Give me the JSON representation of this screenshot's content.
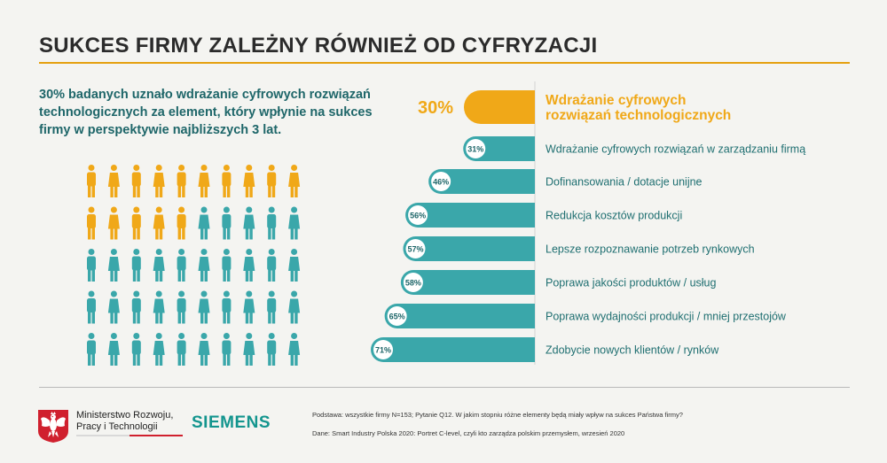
{
  "title": "SUKCES FIRMY ZALEŻNY RÓWNIEŻ OD CYFRYZACJI",
  "intro": "30% badanych uznało wdrażanie cyfrowych rozwiązań technologicznych za element, który wpłynie na sukces firmy w perspektywie najbliższych 3 lat.",
  "colors": {
    "highlight": "#f0a818",
    "base": "#3aa7aa",
    "title_rule": "#e5a010",
    "text_teal": "#1e6669"
  },
  "pictogram": {
    "total": 50,
    "highlighted": 15
  },
  "chart_data": {
    "type": "bar",
    "orientation": "horizontal",
    "title": "",
    "xlabel": "",
    "ylabel": "",
    "xlim": [
      0,
      71
    ],
    "categories": [
      "Wdrażanie cyfrowych rozwiązań technologicznych",
      "Wdrażanie cyfrowych rozwiązań w zarządzaniu firmą",
      "Dofinansowania / dotacje unijne",
      "Redukcja kosztów produkcji",
      "Lepsze rozpoznawanie potrzeb rynkowych",
      "Poprawa jakości produktów / usług",
      "Poprawa wydajności produkcji / mniej przestojów",
      "Zdobycie nowych klientów / rynków"
    ],
    "values": [
      30,
      31,
      46,
      56,
      57,
      58,
      65,
      71
    ],
    "labels": [
      "30%",
      "31%",
      "46%",
      "56%",
      "57%",
      "58%",
      "65%",
      "71%"
    ],
    "highlighted_index": 0
  },
  "footer": {
    "ministry": "Ministerstwo Rozwoju, Pracy i Technologii",
    "siemens": "SIEMENS",
    "basis": "Podstawa: wszystkie firmy N=153; Pytanie Q12. W jakim stopniu różne elementy będą miały wpływ na sukces Państwa firmy?",
    "source": "Dane: Smart Industry Polska 2020: Portret C-level, czyli kto zarządza polskim przemysłem, wrzesień 2020"
  }
}
